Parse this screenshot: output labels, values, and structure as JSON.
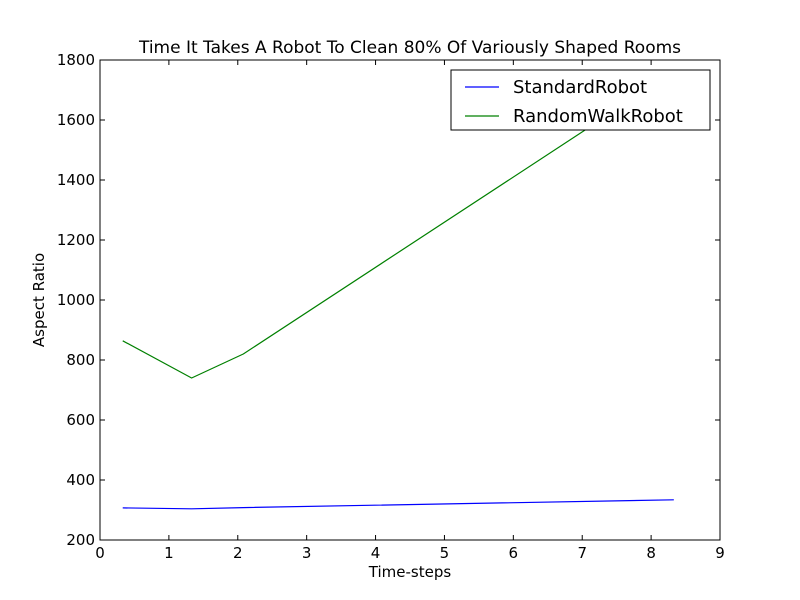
{
  "chart_data": {
    "type": "line",
    "title": "Time It Takes A Robot To Clean 80% Of Variously Shaped Rooms",
    "xlabel": "Time-steps",
    "ylabel": "Aspect Ratio",
    "xlim": [
      0,
      9
    ],
    "ylim": [
      200,
      1800
    ],
    "x_ticks": [
      0,
      1,
      2,
      3,
      4,
      5,
      6,
      7,
      8,
      9
    ],
    "y_ticks": [
      200,
      400,
      600,
      800,
      1000,
      1200,
      1400,
      1600,
      1800
    ],
    "grid": false,
    "legend_position": "top-right",
    "series": [
      {
        "name": "StandardRobot",
        "color": "#0000ff",
        "x": [
          0.33,
          1.33,
          2.08,
          8.33
        ],
        "values": [
          307,
          304,
          308,
          334
        ]
      },
      {
        "name": "RandomWalkRobot",
        "color": "#008000",
        "x": [
          0.33,
          1.33,
          2.08,
          7.33
        ],
        "values": [
          864,
          740,
          820,
          1610
        ]
      }
    ]
  }
}
